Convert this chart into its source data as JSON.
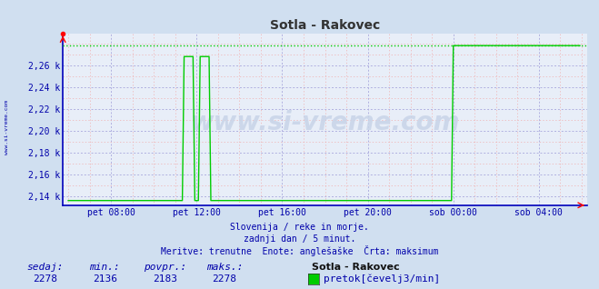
{
  "title": "Sotla - Rakovec",
  "bg_color": "#d0dff0",
  "plot_bg_color": "#e8eef8",
  "line_color": "#00cc00",
  "max_line_color": "#00cc00",
  "axis_color": "#0000bb",
  "grid_color_major": "#b0b0e0",
  "grid_color_minor": "#f0b0b0",
  "text_color": "#0000aa",
  "title_color": "#333333",
  "ylim_min": 2136,
  "ylim_max": 2278,
  "ytick_values": [
    2140,
    2160,
    2180,
    2200,
    2220,
    2240,
    2260
  ],
  "sedaj": 2278,
  "min_val": 2136,
  "povpr_val": 2183,
  "maks_val": 2278,
  "station": "Sotla - Rakovec",
  "legend_label": "pretok[čevelj3/min]",
  "subtitle1": "Slovenija / reke in morje.",
  "subtitle2": "zadnji dan / 5 minut.",
  "subtitle3": "Meritve: trenutne  Enote: anglešaške  Črta: maksimum",
  "xticklabels": [
    "pet 08:00",
    "pet 12:00",
    "pet 16:00",
    "pet 20:00",
    "sob 00:00",
    "sob 04:00"
  ],
  "n_points": 288,
  "baseline_value": 2136,
  "spike_value": 2268,
  "peak_value": 2278,
  "spike1_indices": [
    65,
    66,
    67,
    68,
    69,
    70
  ],
  "spike2_indices": [
    74,
    75,
    76,
    77,
    78,
    79
  ],
  "rise_index": 216,
  "xtick_indices": [
    24,
    72,
    120,
    168,
    216,
    264
  ]
}
